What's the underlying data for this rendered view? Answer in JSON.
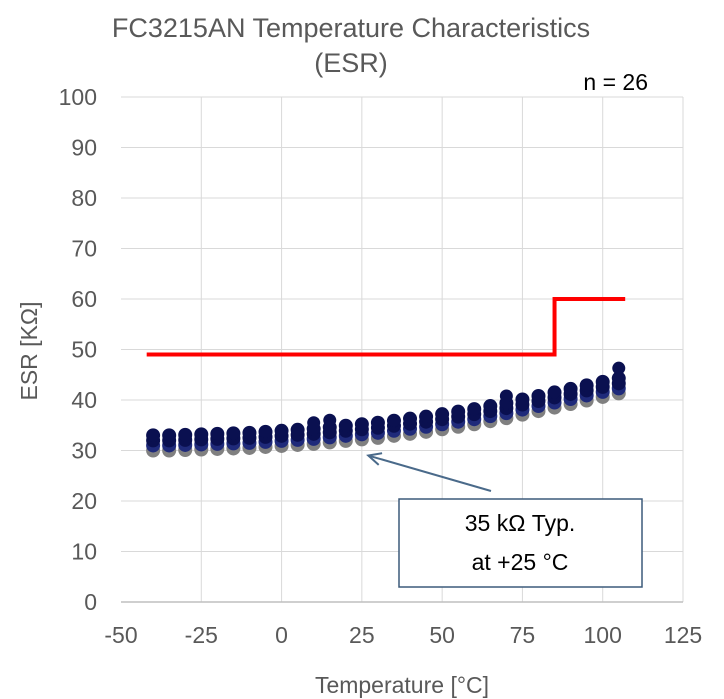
{
  "chart_data": {
    "type": "scatter",
    "title": "FC3215AN Temperature Characteristics",
    "subtitle": "(ESR)",
    "xlabel": "Temperature [°C]",
    "ylabel": "ESR [KΩ]",
    "xlim": [
      -50,
      125
    ],
    "ylim": [
      0,
      100
    ],
    "x_ticks": [
      -50,
      -25,
      0,
      25,
      50,
      75,
      100,
      125
    ],
    "y_ticks": [
      0,
      10,
      20,
      30,
      40,
      50,
      60,
      70,
      80,
      90,
      100
    ],
    "grid": {
      "vertical": true,
      "horizontal": true
    },
    "sample_count_label": "n = 26",
    "temperatures": [
      -40,
      -35,
      -30,
      -25,
      -20,
      -15,
      -10,
      -5,
      0,
      5,
      10,
      15,
      20,
      25,
      30,
      35,
      40,
      45,
      50,
      55,
      60,
      65,
      70,
      75,
      80,
      85,
      90,
      95,
      100,
      105
    ],
    "series": [
      {
        "color": "#808080",
        "values": [
          30.0,
          30.0,
          30.1,
          30.2,
          30.3,
          30.4,
          30.5,
          30.7,
          30.9,
          31.1,
          31.3,
          31.6,
          31.9,
          32.2,
          32.5,
          32.9,
          33.3,
          33.7,
          34.2,
          34.7,
          35.2,
          35.8,
          36.4,
          37.1,
          37.8,
          38.5,
          39.2,
          39.9,
          40.6,
          41.3
        ]
      },
      {
        "color": "#1f2a7a",
        "values": [
          31.0,
          31.0,
          31.1,
          31.2,
          31.3,
          31.4,
          31.5,
          31.7,
          31.9,
          32.1,
          32.3,
          32.6,
          32.9,
          33.2,
          33.5,
          33.9,
          34.3,
          34.7,
          35.2,
          35.7,
          36.2,
          36.8,
          37.4,
          38.1,
          38.8,
          39.5,
          40.2,
          40.9,
          41.6,
          42.3
        ]
      },
      {
        "color": "#0a1050",
        "values": [
          32.0,
          32.0,
          32.1,
          32.2,
          32.3,
          32.4,
          32.5,
          32.7,
          32.9,
          33.1,
          33.3,
          33.6,
          33.9,
          34.2,
          34.5,
          34.9,
          35.3,
          35.7,
          36.2,
          36.7,
          37.2,
          37.8,
          38.4,
          39.1,
          39.8,
          40.5,
          41.2,
          41.9,
          42.6,
          43.3
        ]
      },
      {
        "color": "#0a1050",
        "values": [
          33.0,
          33.0,
          33.1,
          33.2,
          33.3,
          33.4,
          33.5,
          33.7,
          33.9,
          34.1,
          34.3,
          34.6,
          34.9,
          35.2,
          35.5,
          35.9,
          36.3,
          36.7,
          37.2,
          37.7,
          38.2,
          38.8,
          39.4,
          40.1,
          40.8,
          41.5,
          42.2,
          42.9,
          43.6,
          44.3
        ]
      }
    ],
    "outliers": [
      {
        "x": 10,
        "y": 35.5
      },
      {
        "x": 15,
        "y": 36.0
      },
      {
        "x": 70,
        "y": 40.8
      },
      {
        "x": 105,
        "y": 46.3
      }
    ],
    "limit_line": {
      "color": "#ff0000",
      "points": [
        [
          -42,
          49
        ],
        [
          85,
          49
        ],
        [
          85,
          60
        ],
        [
          107,
          60
        ]
      ]
    },
    "annotation": {
      "line1": "35 kΩ Typ.",
      "line2": "at +25 °C",
      "arrow_to": {
        "x": 27,
        "y": 29
      }
    }
  }
}
